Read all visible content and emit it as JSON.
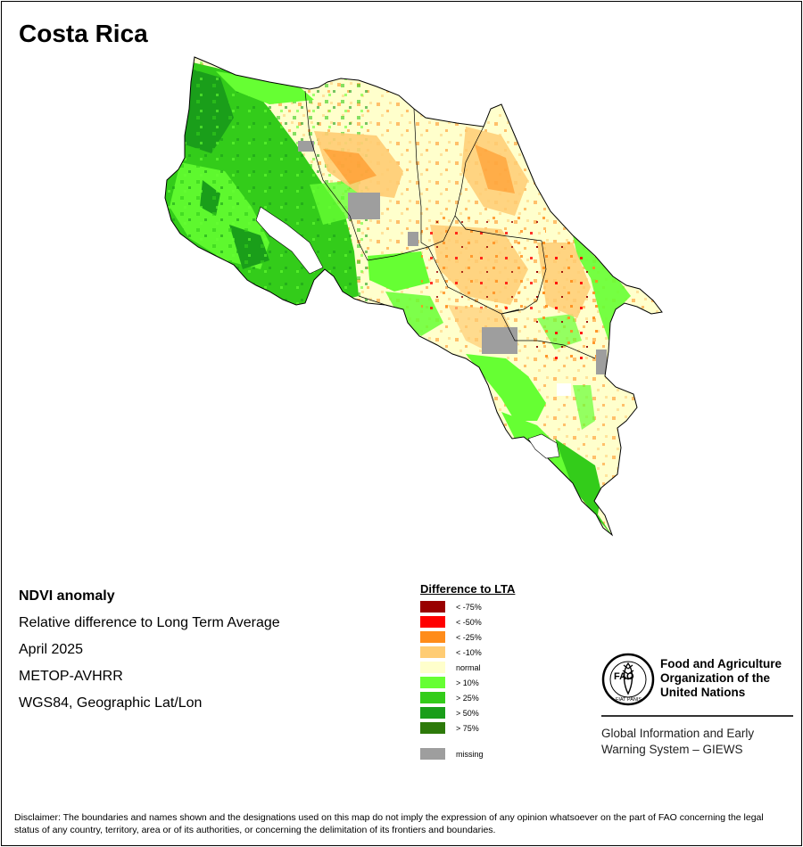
{
  "title": "Costa Rica",
  "info": {
    "heading": "NDVI anomaly",
    "subtitle": "Relative difference to Long Term Average",
    "date": "April 2025",
    "sensor": "METOP-AVHRR",
    "projection": "WGS84, Geographic Lat/Lon"
  },
  "legend": {
    "title": "Difference to LTA",
    "items": [
      {
        "label": "< -75%",
        "color": "#990000"
      },
      {
        "label": "< -50%",
        "color": "#ff0000"
      },
      {
        "label": "< -25%",
        "color": "#ff8c1a"
      },
      {
        "label": "< -10%",
        "color": "#ffcc73"
      },
      {
        "label": "normal",
        "color": "#ffffcc"
      },
      {
        "label": "> 10%",
        "color": "#66ff33"
      },
      {
        "label": "> 25%",
        "color": "#33cc1a"
      },
      {
        "label": "> 50%",
        "color": "#1a9e1a"
      },
      {
        "label": "> 75%",
        "color": "#2d7a0a"
      }
    ],
    "missing": {
      "label": "missing",
      "color": "#9e9e9e"
    }
  },
  "org": {
    "name_line1": "Food and Agriculture",
    "name_line2": "Organization of the",
    "name_line3": "United Nations",
    "system_line1": "Global Information and Early",
    "system_line2": "Warning System – GIEWS",
    "logo_text": "FAO",
    "logo_motto": "FIAT PANIS"
  },
  "disclaimer": "Disclaimer: The boundaries and names shown and the designations used on this map do not imply the expression of any opinion whatsoever on the part of FAO concerning the legal status of any country, territory, area or of its authorities, or concerning the delimitation of its frontiers and boundaries."
}
